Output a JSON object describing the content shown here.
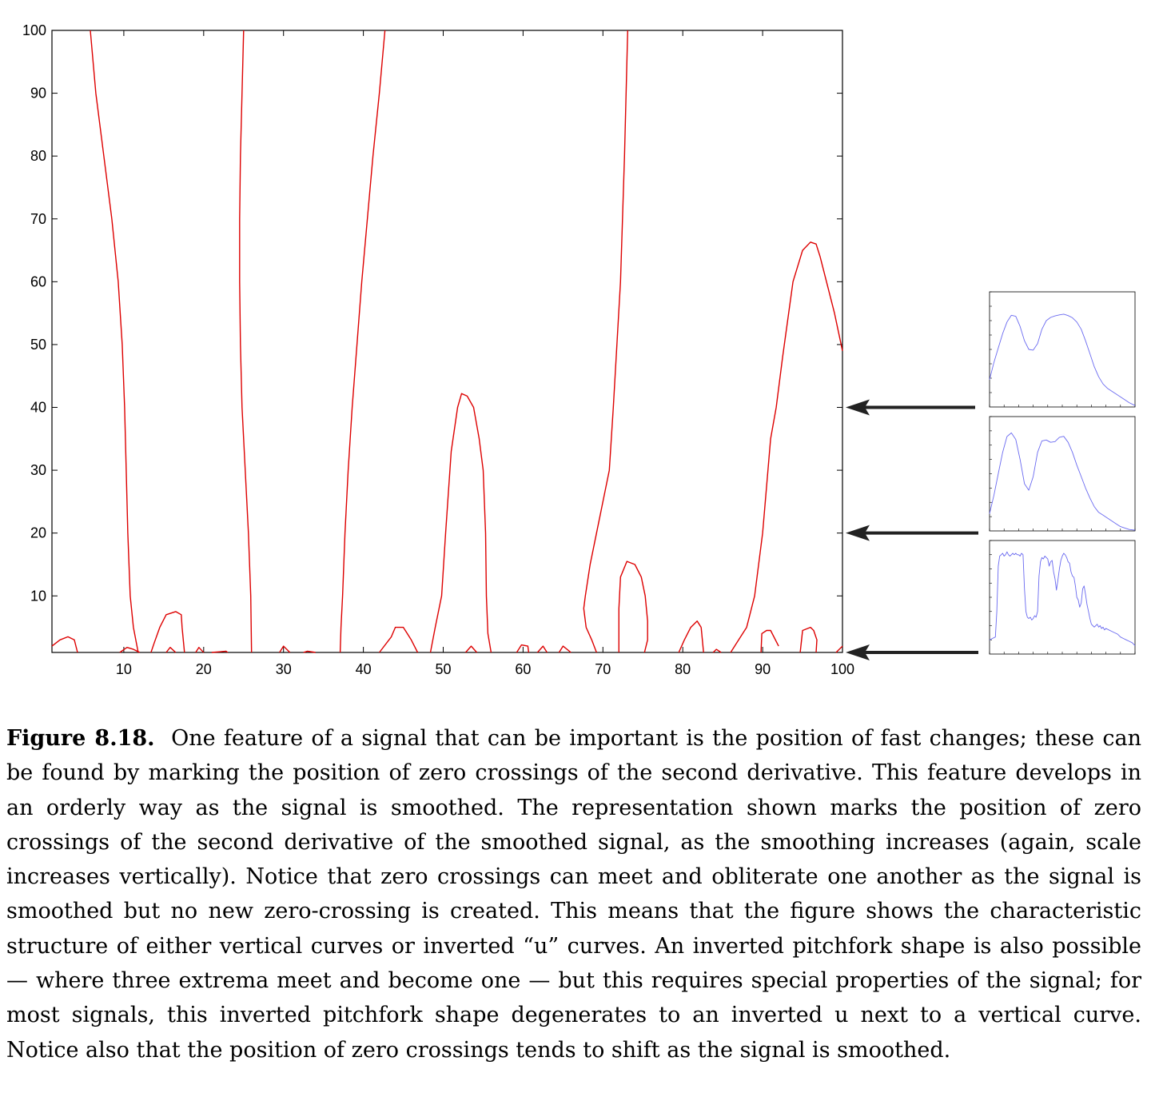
{
  "figure": {
    "label": "Figure 8.18.",
    "caption": "One feature of a signal that can be important is the position of fast changes; these can be found by marking the position of zero crossings of the second derivative. This feature develops in an orderly way as the signal is smoothed. The representation shown marks the position of zero crossings of the second derivative of the smoothed signal, as the smoothing increases (again, scale increases vertically). Notice that zero crossings can meet and obliterate one another as the signal is smoothed but no new zero-crossing is created. This means that the figure shows the characteristic structure of either vertical curves or inverted “u” curves. An inverted pitchfork shape is also possible — where three extrema meet and become one — but this requires special properties of the signal; for most signals, this inverted pitchfork shape degenerates to an inverted u next to a vertical curve. Notice also that the position of zero crossings tends to shift as the signal is smoothed."
  },
  "chart_data": [
    {
      "type": "line",
      "xlim": [
        1,
        100
      ],
      "ylim": [
        1,
        100
      ],
      "xticks": [
        10,
        20,
        30,
        40,
        50,
        60,
        70,
        80,
        90,
        100
      ],
      "yticks": [
        10,
        20,
        30,
        40,
        50,
        60,
        70,
        80,
        90,
        100
      ],
      "grid": false,
      "line_color": "#dd0000",
      "curves": [
        {
          "x": [
            5.8,
            6.5,
            7.5,
            8.5,
            9.3,
            9.8,
            10.1,
            10.3,
            10.5,
            10.8,
            11.2,
            11.8
          ],
          "y": [
            100,
            90,
            80,
            70,
            60,
            50,
            40,
            30,
            20,
            10,
            5,
            1
          ]
        },
        {
          "x": [
            25.0,
            24.8,
            24.6,
            24.5,
            24.5,
            24.6,
            24.8,
            25.2,
            25.6,
            25.9,
            26.0
          ],
          "y": [
            100,
            90,
            80,
            70,
            60,
            50,
            40,
            30,
            20,
            10,
            1
          ]
        },
        {
          "x": [
            42.7,
            42.0,
            41.2,
            40.5,
            39.8,
            39.2,
            38.6,
            38.1,
            37.7,
            37.4,
            37.2,
            37.1
          ],
          "y": [
            100,
            90,
            80,
            70,
            60,
            50,
            40,
            30,
            20,
            10,
            5,
            1
          ]
        },
        {
          "x": [
            48.4,
            49.0,
            49.8,
            50.3,
            51.0,
            51.8,
            52.3,
            53.0,
            53.8,
            54.5,
            55.0,
            55.3,
            55.4,
            55.6,
            56.0
          ],
          "y": [
            1,
            5,
            10,
            20,
            33,
            40,
            42.2,
            41.8,
            40,
            35,
            30,
            20,
            10,
            4,
            1
          ]
        },
        {
          "x": [
            73.1,
            72.7,
            72.2,
            71.3,
            70.8,
            70.0,
            69.2,
            68.4,
            67.8,
            67.6,
            67.9,
            68.6,
            69.2
          ],
          "y": [
            100,
            80,
            60,
            40,
            30,
            25,
            20,
            15,
            10,
            8,
            5,
            3,
            1
          ]
        },
        {
          "x": [
            72.0,
            72.0,
            72.2,
            73.0,
            74.0,
            74.8,
            75.3,
            75.6,
            75.6,
            75.2
          ],
          "y": [
            1,
            8,
            13,
            15.5,
            15,
            13,
            10,
            6,
            3,
            1
          ]
        },
        {
          "x": [
            86.0,
            87.0,
            88.0,
            89.0,
            90.0,
            91.0,
            91.7,
            92.5,
            93.8,
            95.0,
            96.0,
            96.7,
            97.2,
            98.0,
            99.0,
            100.0
          ],
          "y": [
            1,
            3,
            5,
            10,
            20,
            35,
            40,
            48,
            60,
            65,
            66.3,
            66,
            64,
            60,
            55,
            49
          ]
        },
        {
          "x": [
            1,
            2,
            3,
            3.8,
            4.2
          ],
          "y": [
            2,
            3,
            3.5,
            3,
            1
          ]
        },
        {
          "x": [
            13.4,
            13.8,
            14.5,
            15.3,
            16.5,
            17.2,
            17.3,
            17.6
          ],
          "y": [
            1,
            2.5,
            5,
            7,
            7.5,
            7,
            5,
            1
          ]
        },
        {
          "x": [
            9.5,
            10.4,
            11.2,
            12.0
          ],
          "y": [
            1,
            1.8,
            1.5,
            1
          ]
        },
        {
          "x": [
            15.3,
            15.8,
            16.5
          ],
          "y": [
            1,
            1.8,
            1
          ]
        },
        {
          "x": [
            19.0,
            19.4,
            20.0
          ],
          "y": [
            1,
            1.8,
            1
          ]
        },
        {
          "x": [
            21.0,
            22.0,
            22.8,
            23.0
          ],
          "y": [
            1,
            1.1,
            1.2,
            1
          ]
        },
        {
          "x": [
            29.5,
            30.0,
            30.8
          ],
          "y": [
            1,
            2,
            1
          ]
        },
        {
          "x": [
            32.5,
            33.0,
            34.0
          ],
          "y": [
            1,
            1.2,
            1
          ]
        },
        {
          "x": [
            42.0,
            43.5,
            44.0,
            45.0,
            46.0,
            46.8
          ],
          "y": [
            1,
            3.5,
            5,
            5,
            3,
            1
          ]
        },
        {
          "x": [
            52.8,
            53.5,
            54.2
          ],
          "y": [
            1,
            2,
            1
          ]
        },
        {
          "x": [
            59.2,
            59.8,
            60.6,
            60.7
          ],
          "y": [
            1,
            2.2,
            2,
            1
          ]
        },
        {
          "x": [
            61.8,
            62.5,
            63.0
          ],
          "y": [
            1,
            2,
            1
          ]
        },
        {
          "x": [
            64.5,
            65.0,
            66.0
          ],
          "y": [
            1,
            2,
            1
          ]
        },
        {
          "x": [
            79.5,
            80.2,
            81.0,
            81.8,
            82.3
          ],
          "y": [
            1,
            3,
            5,
            6,
            5
          ]
        },
        {
          "x": [
            82.3,
            82.6
          ],
          "y": [
            5,
            1
          ]
        },
        {
          "x": [
            83.8,
            84.2,
            84.8
          ],
          "y": [
            1,
            1.5,
            1
          ]
        },
        {
          "x": [
            89.8,
            89.9,
            90.5,
            91.0,
            92.0
          ],
          "y": [
            1,
            4,
            4.5,
            4.5,
            2
          ]
        },
        {
          "x": [
            94.7,
            95.0,
            96.0,
            96.4,
            96.8,
            96.7
          ],
          "y": [
            1,
            4.5,
            5,
            4.5,
            3,
            1
          ]
        },
        {
          "x": [
            99.2,
            100.0
          ],
          "y": [
            1,
            2
          ]
        }
      ]
    },
    {
      "type": "line",
      "name": "smoothed-signal-scale-40",
      "xlim": [
        0,
        100
      ],
      "ylim": [
        0,
        0.8
      ],
      "line_color": "#6a6af0",
      "x": [
        0,
        3,
        6,
        9,
        12,
        15,
        18,
        21,
        24,
        27,
        30,
        33,
        36,
        39,
        42,
        45,
        48,
        51,
        54,
        57,
        60,
        63,
        66,
        69,
        72,
        75,
        78,
        81,
        84,
        87,
        90,
        93,
        96,
        100
      ],
      "y": [
        0.19,
        0.31,
        0.41,
        0.51,
        0.59,
        0.637,
        0.63,
        0.56,
        0.46,
        0.4,
        0.395,
        0.44,
        0.54,
        0.6,
        0.622,
        0.633,
        0.64,
        0.645,
        0.635,
        0.62,
        0.59,
        0.54,
        0.46,
        0.37,
        0.28,
        0.21,
        0.16,
        0.13,
        0.11,
        0.09,
        0.07,
        0.05,
        0.03,
        0.01
      ]
    },
    {
      "type": "line",
      "name": "smoothed-signal-scale-20",
      "xlim": [
        0,
        100
      ],
      "ylim": [
        0,
        0.8
      ],
      "line_color": "#6a6af0",
      "x": [
        0,
        3,
        6,
        9,
        12,
        15,
        18,
        21,
        24,
        27,
        30,
        33,
        36,
        39,
        42,
        45,
        48,
        51,
        54,
        57,
        60,
        63,
        66,
        69,
        72,
        75,
        78,
        81,
        84,
        87,
        90,
        93,
        96,
        100
      ],
      "y": [
        0.12,
        0.25,
        0.4,
        0.55,
        0.66,
        0.686,
        0.64,
        0.5,
        0.33,
        0.285,
        0.38,
        0.55,
        0.63,
        0.636,
        0.62,
        0.625,
        0.655,
        0.662,
        0.62,
        0.55,
        0.46,
        0.38,
        0.3,
        0.23,
        0.17,
        0.13,
        0.11,
        0.09,
        0.07,
        0.05,
        0.03,
        0.02,
        0.01,
        0.005
      ]
    },
    {
      "type": "line",
      "name": "original-signal",
      "xlim": [
        0,
        100
      ],
      "ylim": [
        0,
        0.8
      ],
      "line_color": "#6a6af0",
      "x": [
        0,
        2,
        4,
        5,
        6,
        7,
        8,
        9,
        10,
        11,
        12,
        13,
        14,
        15,
        16,
        17,
        18,
        19,
        20,
        21,
        22,
        23,
        24,
        25,
        26,
        27,
        28,
        29,
        30,
        31,
        32,
        33,
        34,
        35,
        36,
        37,
        38,
        39,
        40,
        41,
        42,
        43,
        44,
        45,
        46,
        47,
        48,
        49,
        50,
        51,
        52,
        53,
        54,
        55,
        56,
        57,
        58,
        59,
        60,
        61,
        62,
        63,
        64,
        65,
        66,
        67,
        68,
        69,
        70,
        71,
        72,
        73,
        74,
        75,
        76,
        77,
        78,
        79,
        80,
        82,
        84,
        86,
        88,
        90,
        92,
        94,
        96,
        98,
        100
      ],
      "y": [
        0.1,
        0.11,
        0.12,
        0.3,
        0.62,
        0.69,
        0.7,
        0.71,
        0.69,
        0.7,
        0.72,
        0.7,
        0.69,
        0.7,
        0.71,
        0.7,
        0.71,
        0.7,
        0.7,
        0.69,
        0.71,
        0.7,
        0.46,
        0.3,
        0.26,
        0.25,
        0.26,
        0.24,
        0.25,
        0.27,
        0.26,
        0.3,
        0.55,
        0.65,
        0.68,
        0.67,
        0.69,
        0.68,
        0.67,
        0.62,
        0.65,
        0.66,
        0.58,
        0.53,
        0.45,
        0.52,
        0.6,
        0.66,
        0.69,
        0.71,
        0.7,
        0.68,
        0.65,
        0.64,
        0.58,
        0.55,
        0.54,
        0.48,
        0.4,
        0.38,
        0.33,
        0.36,
        0.46,
        0.48,
        0.42,
        0.35,
        0.3,
        0.25,
        0.21,
        0.2,
        0.19,
        0.2,
        0.21,
        0.19,
        0.2,
        0.18,
        0.19,
        0.17,
        0.18,
        0.17,
        0.16,
        0.15,
        0.14,
        0.12,
        0.11,
        0.1,
        0.09,
        0.08,
        0.06
      ]
    }
  ],
  "arrows": [
    {
      "scale": 40
    },
    {
      "scale": 20
    },
    {
      "scale": 1
    }
  ]
}
